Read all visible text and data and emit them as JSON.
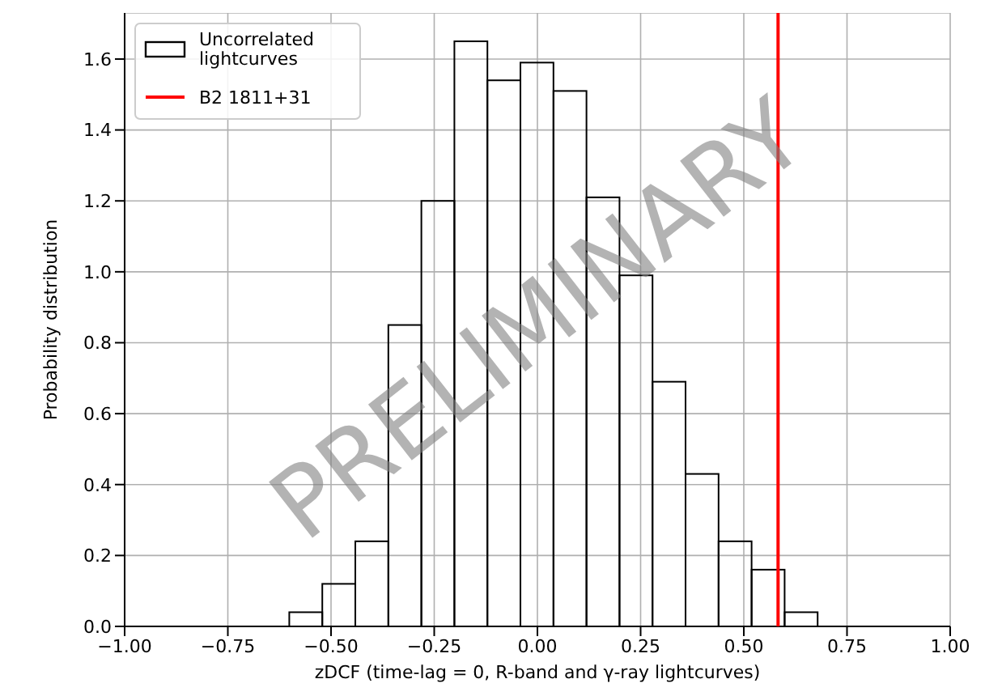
{
  "chart_data": {
    "type": "histogram",
    "xlabel": "zDCF (time-lag = 0, R-band and γ-ray lightcurves)",
    "ylabel": "Probability distribution",
    "bins": [
      -0.6,
      -0.52,
      -0.44,
      -0.36,
      -0.28,
      -0.2,
      -0.12,
      -0.04,
      0.04,
      0.12,
      0.2,
      0.28,
      0.36,
      0.44,
      0.52,
      0.6,
      0.68
    ],
    "series": [
      {
        "name": "Uncorrelated lightcurves",
        "color": "#000000",
        "values": [
          0.04,
          0.12,
          0.24,
          0.85,
          1.2,
          1.65,
          1.54,
          1.59,
          1.51,
          1.21,
          0.99,
          0.69,
          0.43,
          0.24,
          0.16,
          0.04
        ]
      },
      {
        "type": "line",
        "name": "B2 1811+31",
        "color": "#ff0000",
        "x": [
          0.583,
          0.583
        ],
        "values": [
          0,
          1.73
        ]
      }
    ],
    "xlim": [
      -1,
      1
    ],
    "ylim": [
      0,
      1.73
    ],
    "xticks": [
      {
        "value": -1,
        "label": "−1.00"
      },
      {
        "value": -0.75,
        "label": "−0.75"
      },
      {
        "value": -0.5,
        "label": "−0.50"
      },
      {
        "value": -0.25,
        "label": "−0.25"
      },
      {
        "value": 0,
        "label": "0.00"
      },
      {
        "value": 0.25,
        "label": "0.25"
      },
      {
        "value": 0.5,
        "label": "0.50"
      },
      {
        "value": 0.75,
        "label": "0.75"
      },
      {
        "value": 1,
        "label": "1.00"
      }
    ],
    "yticks": [
      {
        "value": 0,
        "label": "0.0"
      },
      {
        "value": 0.2,
        "label": "0.2"
      },
      {
        "value": 0.4,
        "label": "0.4"
      },
      {
        "value": 0.6,
        "label": "0.6"
      },
      {
        "value": 0.8,
        "label": "0.8"
      },
      {
        "value": 1,
        "label": "1.0"
      },
      {
        "value": 1.2,
        "label": "1.2"
      },
      {
        "value": 1.4,
        "label": "1.4"
      },
      {
        "value": 1.6,
        "label": "1.6"
      }
    ],
    "grid": true,
    "legend": "top left",
    "annotations": [
      "PRELIMINARY"
    ]
  }
}
